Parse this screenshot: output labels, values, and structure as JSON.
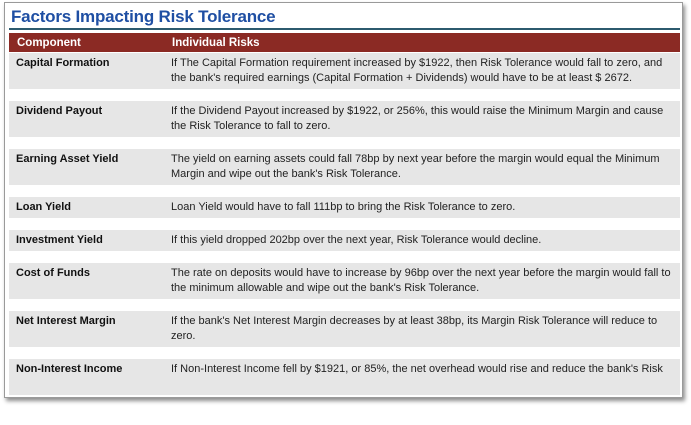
{
  "title": "Factors Impacting Risk Tolerance",
  "table": {
    "headers": [
      "Component",
      "Individual Risks"
    ],
    "rows": [
      {
        "component": "Capital Formation",
        "risk": "If The Capital Formation requirement increased by $1922, then Risk Tolerance would fall to zero, and the bank's required earnings (Capital Formation + Dividends) would have to be at least $ 2672."
      },
      {
        "component": "Dividend Payout",
        "risk": "If the Dividend Payout increased by $1922, or 256%, this would raise the Minimum Margin and cause the Risk Tolerance to fall to zero."
      },
      {
        "component": "Earning Asset Yield",
        "risk": "The yield on earning assets could fall 78bp by next year before the margin would equal the Minimum Margin and wipe out the bank's Risk Tolerance."
      },
      {
        "component": "Loan Yield",
        "risk": "Loan Yield would have to fall 111bp to bring the Risk Tolerance to zero."
      },
      {
        "component": "Investment Yield",
        "risk": "If this yield dropped 202bp over the next year, Risk Tolerance would decline."
      },
      {
        "component": "Cost of Funds",
        "risk": "The rate on deposits would have to increase by 96bp over the next year before the margin would fall to the minimum allowable and wipe out the bank's Risk Tolerance."
      },
      {
        "component": "Net Interest Margin",
        "risk": "If the bank's Net Interest Margin decreases by at least 38bp, its Margin Risk Tolerance will reduce to zero."
      },
      {
        "component": "Non-Interest Income",
        "risk": "If Non-Interest Income fell by $1921, or 85%, the net overhead would rise and reduce the bank's Risk"
      }
    ]
  },
  "colors": {
    "title": "#1f4fa3",
    "header_bg": "#8b2a24",
    "row_bg": "#e6e6e6",
    "rule": "#2c5a6e"
  }
}
